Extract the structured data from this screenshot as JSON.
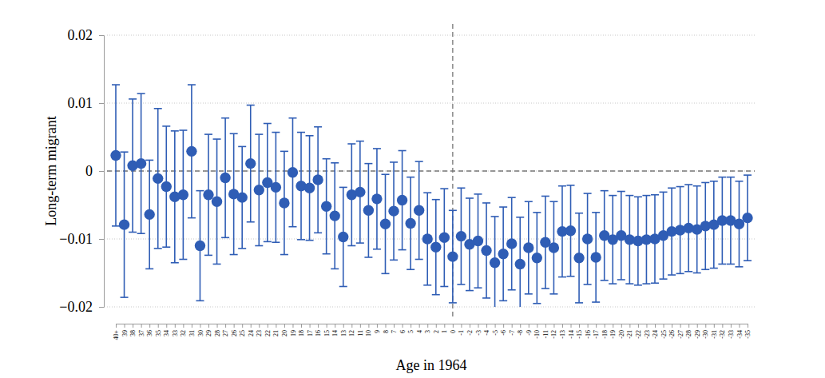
{
  "chart_data": {
    "type": "scatter",
    "x_label": "Age in 1964",
    "y_label": "Long-term migrant",
    "categories": [
      "40+",
      "39",
      "38",
      "37",
      "36",
      "35",
      "34",
      "33",
      "32",
      "31",
      "30",
      "29",
      "28",
      "27",
      "26",
      "25",
      "24",
      "23",
      "22",
      "21",
      "20",
      "19",
      "18",
      "17",
      "16",
      "15",
      "14",
      "13",
      "12",
      "11",
      "10",
      "9",
      "8",
      "7",
      "6",
      "5",
      "4",
      "3",
      "2",
      "1",
      "0",
      "-1",
      "-2",
      "-3",
      "-4",
      "-5",
      "-6",
      "-7",
      "-8",
      "-9",
      "-10",
      "-11",
      "-12",
      "-13",
      "-14",
      "-15",
      "-16",
      "-17",
      "-18",
      "-19",
      "-20",
      "-21",
      "-22",
      "-23",
      "-24",
      "-25",
      "-26",
      "-27",
      "-28",
      "-29",
      "-30",
      "-31",
      "-32",
      "-33",
      "-34",
      "-35"
    ],
    "values": [
      0.0023,
      -0.0079,
      0.0008,
      0.0011,
      -0.0064,
      -0.0011,
      -0.0023,
      -0.0038,
      -0.0035,
      0.0029,
      -0.011,
      -0.0035,
      -0.0045,
      -0.001,
      -0.0034,
      -0.0039,
      0.0011,
      -0.0028,
      -0.0017,
      -0.0024,
      -0.0047,
      -0.0002,
      -0.0022,
      -0.0025,
      -0.0013,
      -0.0052,
      -0.0066,
      -0.0097,
      -0.0035,
      -0.0031,
      -0.0058,
      -0.0041,
      -0.0078,
      -0.0059,
      -0.0043,
      -0.0077,
      -0.0058,
      -0.01,
      -0.0112,
      -0.0098,
      -0.0126,
      -0.0096,
      -0.0108,
      -0.0103,
      -0.0117,
      -0.0135,
      -0.0122,
      -0.0107,
      -0.0137,
      -0.0113,
      -0.0128,
      -0.0105,
      -0.0113,
      -0.0089,
      -0.0088,
      -0.0128,
      -0.01,
      -0.0127,
      -0.0095,
      -0.0101,
      -0.0095,
      -0.0101,
      -0.0103,
      -0.0101,
      -0.01,
      -0.0095,
      -0.0089,
      -0.0087,
      -0.0084,
      -0.0086,
      -0.0081,
      -0.0079,
      -0.0073,
      -0.0073,
      -0.0078,
      -0.0069
    ],
    "errors": [
      0.0104,
      0.0107,
      0.0098,
      0.0103,
      0.008,
      0.0103,
      0.0089,
      0.0097,
      0.0095,
      0.0098,
      0.0081,
      0.0089,
      0.0092,
      0.0088,
      0.0089,
      0.0075,
      0.0086,
      0.0082,
      0.0087,
      0.0081,
      0.0076,
      0.008,
      0.0079,
      0.0077,
      0.0078,
      0.007,
      0.0078,
      0.0073,
      0.0075,
      0.0075,
      0.0069,
      0.0074,
      0.0073,
      0.0072,
      0.0073,
      0.0068,
      0.0072,
      0.0068,
      0.007,
      0.0072,
      0.0068,
      0.0071,
      0.0068,
      0.0069,
      0.007,
      0.0068,
      0.0069,
      0.0068,
      0.0069,
      0.0068,
      0.0067,
      0.0068,
      0.0068,
      0.0067,
      0.0067,
      0.0066,
      0.0067,
      0.0066,
      0.0066,
      0.0065,
      0.0065,
      0.0065,
      0.0065,
      0.0065,
      0.0065,
      0.0064,
      0.0064,
      0.0064,
      0.0064,
      0.0064,
      0.0064,
      0.0064,
      0.0064,
      0.0064,
      0.0063,
      0.0063
    ],
    "color": "#2f5db5",
    "marker": "circle",
    "ylim": [
      -0.02,
      0.02
    ],
    "yticks": [
      {
        "value": -0.02,
        "label": "−0.02"
      },
      {
        "value": -0.01,
        "label": "−0.01"
      },
      0,
      0.01,
      0.02
    ],
    "grid": true,
    "reference_lines": {
      "x": "0",
      "y": 0
    }
  }
}
